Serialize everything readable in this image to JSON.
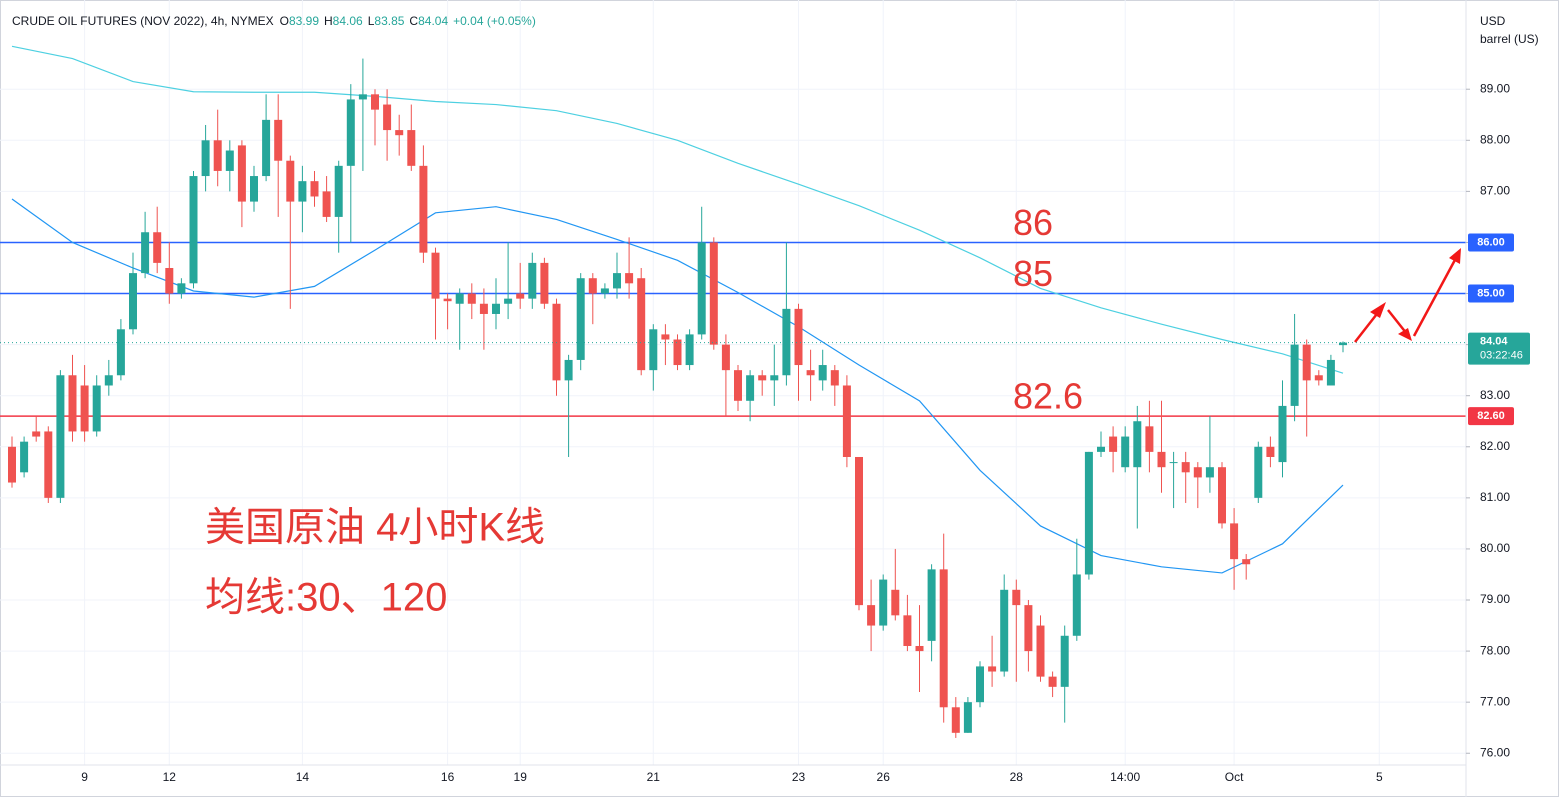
{
  "chart_data": {
    "type": "candlestick",
    "title": "CRUDE OIL FUTURES (NOV 2022), 4h, NYMEX",
    "ohlc_legend": [
      {
        "label": "O",
        "value": "83.99"
      },
      {
        "label": "H",
        "value": "84.06"
      },
      {
        "label": "L",
        "value": "83.85"
      },
      {
        "label": "C",
        "value": "84.04"
      }
    ],
    "change": "+0.04 (+0.05%)",
    "units": [
      "USD",
      "barrel (US)"
    ],
    "up_color": "#26a69a",
    "down_color": "#ef5350",
    "categories": [
      null,
      null,
      null,
      null,
      null,
      null,
      "9",
      null,
      null,
      null,
      null,
      null,
      null,
      "12",
      null,
      null,
      null,
      null,
      null,
      null,
      null,
      null,
      null,
      null,
      "14",
      null,
      null,
      null,
      null,
      null,
      null,
      null,
      null,
      null,
      null,
      null,
      "16",
      null,
      null,
      null,
      null,
      null,
      "19",
      null,
      null,
      null,
      null,
      null,
      null,
      null,
      null,
      null,
      null,
      "21",
      null,
      null,
      null,
      null,
      null,
      null,
      null,
      null,
      null,
      null,
      null,
      "23",
      null,
      null,
      null,
      null,
      null,
      null,
      "26",
      null,
      null,
      null,
      null,
      null,
      null,
      null,
      null,
      null,
      null,
      "28",
      null,
      null,
      null,
      null,
      null,
      null,
      null,
      null,
      "14:00",
      null,
      null,
      null,
      null,
      null,
      null,
      null,
      null,
      "Oct",
      null,
      null,
      null,
      null,
      null,
      null,
      null,
      null,
      null,
      null,
      null,
      "5"
    ],
    "open": [
      82.0,
      81.5,
      82.3,
      82.3,
      81.0,
      83.4,
      83.2,
      82.3,
      83.2,
      83.4,
      84.3,
      85.4,
      86.2,
      85.5,
      85.0,
      85.2,
      87.3,
      88.0,
      87.4,
      87.9,
      86.8,
      87.3,
      88.4,
      87.6,
      86.8,
      87.2,
      87.0,
      86.5,
      87.5,
      88.8,
      88.9,
      88.7,
      88.2,
      88.2,
      87.5,
      85.8,
      84.9,
      84.8,
      85.0,
      84.8,
      84.6,
      84.8,
      85.0,
      84.9,
      85.6,
      84.8,
      83.3,
      83.7,
      85.3,
      85.0,
      85.1,
      85.4,
      85.3,
      83.5,
      84.2,
      84.1,
      83.6,
      84.2,
      86.0,
      84.0,
      83.5,
      82.9,
      83.4,
      83.3,
      83.4,
      84.7,
      83.5,
      83.3,
      83.5,
      83.2,
      81.8,
      78.9,
      78.5,
      79.2,
      78.7,
      78.1,
      78.2,
      79.6,
      76.9,
      76.4,
      77.0,
      77.7,
      77.6,
      79.2,
      78.9,
      78.5,
      77.5,
      77.3,
      78.3,
      79.5,
      81.9,
      82.2,
      81.6,
      81.6,
      82.4,
      81.9,
      81.7,
      81.7,
      81.6,
      81.4,
      81.6,
      80.5,
      79.8,
      81.0,
      82.0,
      81.7,
      82.8,
      84.0,
      83.4,
      83.2,
      83.99,
      null,
      null,
      null
    ],
    "high": [
      82.2,
      82.2,
      82.6,
      82.4,
      83.5,
      83.8,
      83.6,
      83.4,
      83.7,
      84.5,
      85.8,
      86.6,
      86.7,
      86.0,
      85.3,
      87.4,
      88.3,
      88.6,
      88.0,
      88.0,
      87.5,
      88.9,
      88.9,
      87.7,
      87.5,
      87.4,
      87.3,
      87.6,
      89.1,
      89.6,
      89.0,
      89.0,
      88.5,
      88.7,
      87.9,
      85.9,
      85.0,
      85.1,
      85.2,
      85.1,
      85.3,
      86.0,
      85.6,
      85.8,
      85.7,
      84.9,
      83.8,
      85.4,
      85.4,
      85.2,
      85.8,
      86.1,
      85.5,
      84.4,
      84.4,
      84.2,
      84.3,
      86.7,
      86.1,
      84.2,
      83.6,
      83.5,
      83.5,
      84.0,
      86.0,
      84.8,
      83.9,
      83.9,
      83.6,
      83.4,
      81.8,
      79.4,
      79.5,
      80.0,
      79.1,
      78.9,
      79.7,
      80.3,
      77.1,
      77.1,
      77.8,
      78.3,
      79.5,
      79.4,
      79.0,
      78.7,
      77.6,
      78.5,
      80.2,
      81.9,
      82.3,
      82.4,
      82.4,
      82.8,
      82.9,
      82.9,
      81.9,
      81.9,
      81.7,
      82.6,
      81.7,
      80.8,
      79.9,
      82.1,
      82.2,
      83.3,
      84.6,
      84.1,
      83.5,
      83.8,
      84.06,
      null,
      null,
      null
    ],
    "low": [
      81.2,
      81.4,
      82.1,
      80.9,
      80.9,
      82.1,
      82.1,
      82.2,
      83.0,
      83.3,
      84.2,
      85.3,
      85.4,
      84.8,
      84.9,
      85.1,
      87.0,
      87.1,
      87.0,
      86.3,
      86.6,
      87.2,
      86.5,
      84.7,
      86.2,
      86.7,
      86.4,
      85.8,
      86.0,
      87.4,
      87.9,
      87.6,
      87.7,
      87.4,
      85.6,
      84.1,
      84.3,
      83.9,
      84.5,
      83.9,
      84.3,
      84.5,
      84.7,
      84.7,
      84.7,
      83.0,
      81.8,
      83.5,
      84.4,
      84.9,
      84.9,
      84.9,
      83.4,
      83.1,
      83.6,
      83.5,
      83.5,
      84.1,
      83.9,
      82.6,
      82.7,
      82.5,
      83.0,
      82.8,
      83.2,
      82.9,
      82.9,
      83.1,
      82.8,
      81.6,
      78.8,
      78.0,
      78.4,
      78.6,
      78.0,
      77.2,
      77.8,
      76.6,
      76.3,
      76.4,
      76.9,
      77.3,
      77.5,
      77.4,
      77.6,
      77.4,
      77.1,
      76.6,
      78.2,
      79.4,
      81.8,
      81.5,
      81.5,
      80.4,
      81.5,
      81.1,
      80.8,
      80.9,
      80.8,
      81.1,
      80.4,
      79.2,
      79.4,
      80.9,
      81.6,
      81.4,
      82.5,
      82.2,
      83.2,
      83.2,
      83.85,
      null,
      null,
      null
    ],
    "close": [
      81.3,
      82.1,
      82.2,
      81.0,
      83.4,
      82.3,
      82.3,
      83.2,
      83.4,
      84.3,
      85.4,
      86.2,
      85.6,
      85.0,
      85.2,
      87.3,
      88.0,
      87.4,
      87.8,
      86.8,
      87.3,
      88.4,
      87.6,
      86.8,
      87.2,
      86.9,
      86.5,
      87.5,
      88.8,
      88.9,
      88.6,
      88.2,
      88.1,
      87.5,
      85.8,
      84.9,
      84.85,
      85.0,
      84.8,
      84.6,
      84.8,
      84.9,
      84.9,
      85.6,
      84.8,
      83.3,
      83.7,
      85.3,
      85.0,
      85.1,
      85.4,
      85.2,
      83.5,
      84.3,
      84.1,
      83.6,
      84.2,
      86.0,
      84.0,
      83.5,
      82.9,
      83.4,
      83.3,
      83.4,
      84.7,
      83.6,
      83.4,
      83.6,
      83.2,
      81.8,
      78.9,
      78.5,
      79.4,
      78.7,
      78.1,
      78.0,
      79.6,
      76.9,
      76.4,
      77.0,
      77.7,
      77.6,
      79.2,
      78.9,
      78.0,
      77.5,
      77.3,
      78.3,
      79.5,
      81.9,
      82.0,
      81.9,
      82.2,
      82.5,
      81.9,
      81.6,
      81.7,
      81.5,
      81.4,
      81.6,
      80.5,
      79.8,
      79.7,
      82.0,
      81.8,
      82.8,
      84.0,
      83.3,
      83.3,
      83.7,
      84.04,
      null,
      null,
      null
    ],
    "series": [
      {
        "color": "#2196f3",
        "x": [
          0,
          5,
          10,
          15,
          20,
          25,
          30,
          35,
          40,
          45,
          50,
          55,
          60,
          65,
          70,
          75,
          80,
          85,
          90,
          95,
          100,
          105,
          110
        ],
        "values": [
          86.85,
          86.0,
          85.5,
          85.05,
          84.93,
          85.14,
          85.85,
          86.58,
          86.7,
          86.45,
          86.06,
          85.65,
          85.02,
          84.35,
          83.6,
          82.9,
          81.54,
          80.45,
          79.87,
          79.65,
          79.53,
          80.1,
          81.25
        ]
      },
      {
        "color": "#4dd0e1",
        "x": [
          0,
          5,
          10,
          15,
          20,
          25,
          30,
          35,
          40,
          45,
          50,
          55,
          60,
          65,
          70,
          75,
          80,
          85,
          90,
          95,
          100,
          105,
          110
        ],
        "values": [
          89.84,
          89.6,
          89.15,
          88.95,
          88.94,
          88.94,
          88.86,
          88.76,
          88.7,
          88.58,
          88.33,
          88.0,
          87.55,
          87.14,
          86.72,
          86.24,
          85.7,
          85.1,
          84.72,
          84.4,
          84.1,
          83.82,
          83.44
        ]
      }
    ],
    "hlines": [
      {
        "value": 86,
        "color": "#2962ff",
        "label": "86",
        "price_label": "86.00"
      },
      {
        "value": 85,
        "color": "#2962ff",
        "label": "85",
        "price_label": "85.00"
      },
      {
        "value": 82.6,
        "color": "#f23645",
        "label": "82.6",
        "price_label": "82.60"
      }
    ],
    "last_price": {
      "value": 84.04,
      "label": "84.04",
      "countdown": "03:22:46"
    },
    "annotations": [
      "美国原油 4小时K线",
      "均线:30、120"
    ],
    "ylim": [
      75.77,
      90.59
    ],
    "yticks": [
      {
        "value": 76,
        "label": "76.00"
      },
      {
        "value": 77,
        "label": "77.00"
      },
      {
        "value": 78,
        "label": "78.00"
      },
      {
        "value": 79,
        "label": "79.00"
      },
      {
        "value": 80,
        "label": "80.00"
      },
      {
        "value": 81,
        "label": "81.00"
      },
      {
        "value": 82,
        "label": "82.00"
      },
      {
        "value": 83,
        "label": "83.00"
      },
      {
        "value": 84,
        "label": "84.00"
      },
      {
        "value": 85,
        "label": "85.00"
      },
      {
        "value": 86,
        "label": "86.00"
      },
      {
        "value": 87,
        "label": "87.00"
      },
      {
        "value": 88,
        "label": "88.00"
      },
      {
        "value": 89,
        "label": "89.00"
      }
    ],
    "grid": true
  }
}
